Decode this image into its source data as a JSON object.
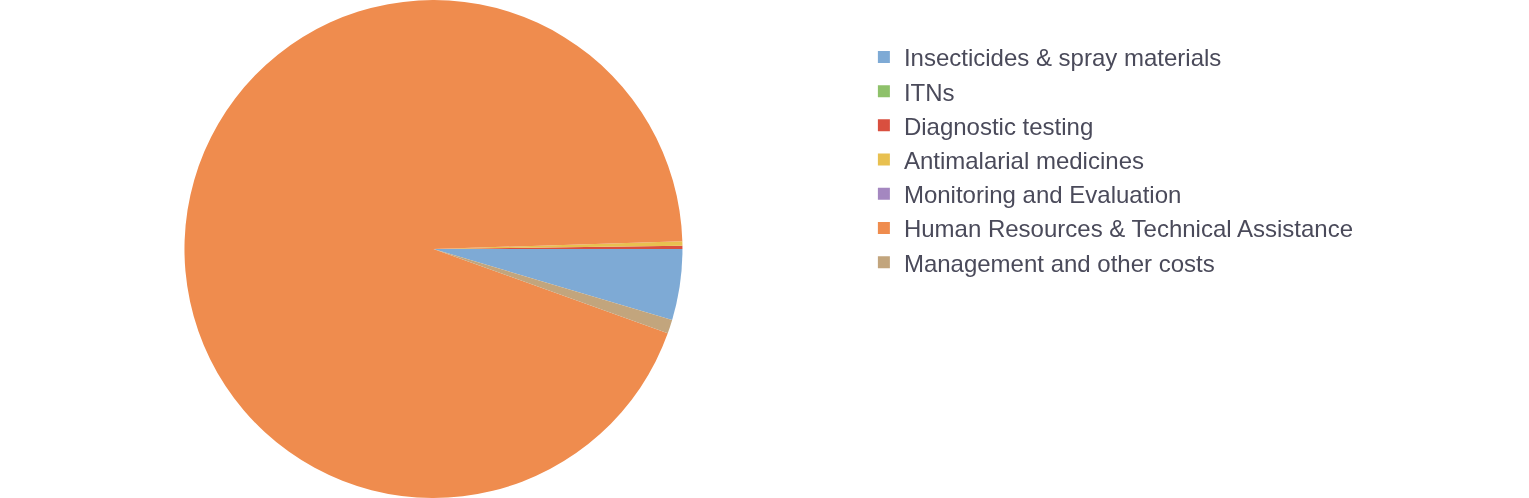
{
  "chart_data": {
    "type": "pie",
    "categories": [
      "Insecticides & spray materials",
      "ITNs",
      "Diagnostic testing",
      "Antimalarial medicines",
      "Monitoring and Evaluation",
      "Human Resources & Technical Assistance",
      "Management and other costs"
    ],
    "values": [
      4.6,
      0,
      0.2,
      0.3,
      0,
      94.0,
      0.9
    ],
    "colors": [
      "#7eaad5",
      "#8ec16a",
      "#d94f3f",
      "#e8c050",
      "#a487c0",
      "#ef8c4e",
      "#c2a57d"
    ],
    "legend": "right"
  }
}
